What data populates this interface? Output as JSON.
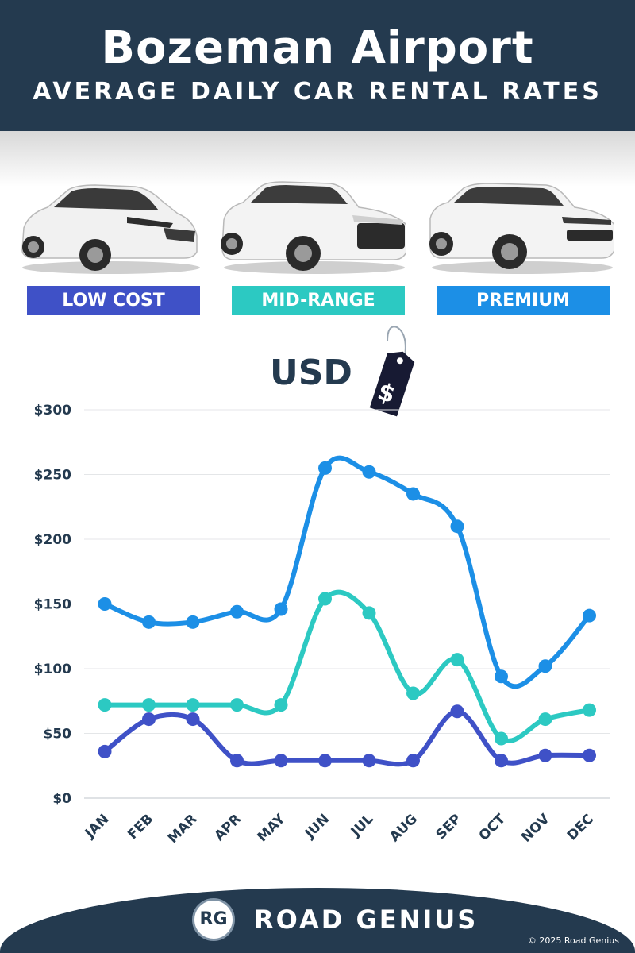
{
  "header": {
    "title": "Bozeman Airport",
    "subtitle": "AVERAGE DAILY CAR RENTAL RATES"
  },
  "categories": [
    {
      "label": "LOW COST",
      "color": "#3f51c7",
      "image": "hatchback-car-image"
    },
    {
      "label": "MID-RANGE",
      "color": "#2cc9c2",
      "image": "suv-car-image"
    },
    {
      "label": "PREMIUM",
      "color": "#1c8fe6",
      "image": "luxury-suv-image"
    }
  ],
  "currency": {
    "label": "USD",
    "icon": "dollar-price-tag-icon",
    "tag_symbol": "$"
  },
  "chart_data": {
    "type": "line",
    "categories": [
      "JAN",
      "FEB",
      "MAR",
      "APR",
      "MAY",
      "JUN",
      "JUL",
      "AUG",
      "SEP",
      "OCT",
      "NOV",
      "DEC"
    ],
    "series": [
      {
        "name": "PREMIUM",
        "color": "#1c8fe6",
        "values": [
          150,
          136,
          136,
          144,
          146,
          255,
          252,
          235,
          210,
          94,
          102,
          141
        ]
      },
      {
        "name": "MID-RANGE",
        "color": "#2cc9c2",
        "values": [
          72,
          72,
          72,
          72,
          72,
          154,
          143,
          81,
          107,
          46,
          61,
          68
        ]
      },
      {
        "name": "LOW COST",
        "color": "#3f51c7",
        "values": [
          36,
          61,
          61,
          29,
          29,
          29,
          29,
          29,
          67,
          29,
          33,
          33
        ]
      }
    ],
    "yticks": [
      "$0",
      "$50",
      "$100",
      "$150",
      "$200",
      "$250",
      "$300"
    ],
    "ylim": [
      0,
      300
    ],
    "grid": true
  },
  "footer": {
    "logo": "RG",
    "brand": "ROAD GENIUS",
    "copyright": "© 2025 Road Genius"
  }
}
